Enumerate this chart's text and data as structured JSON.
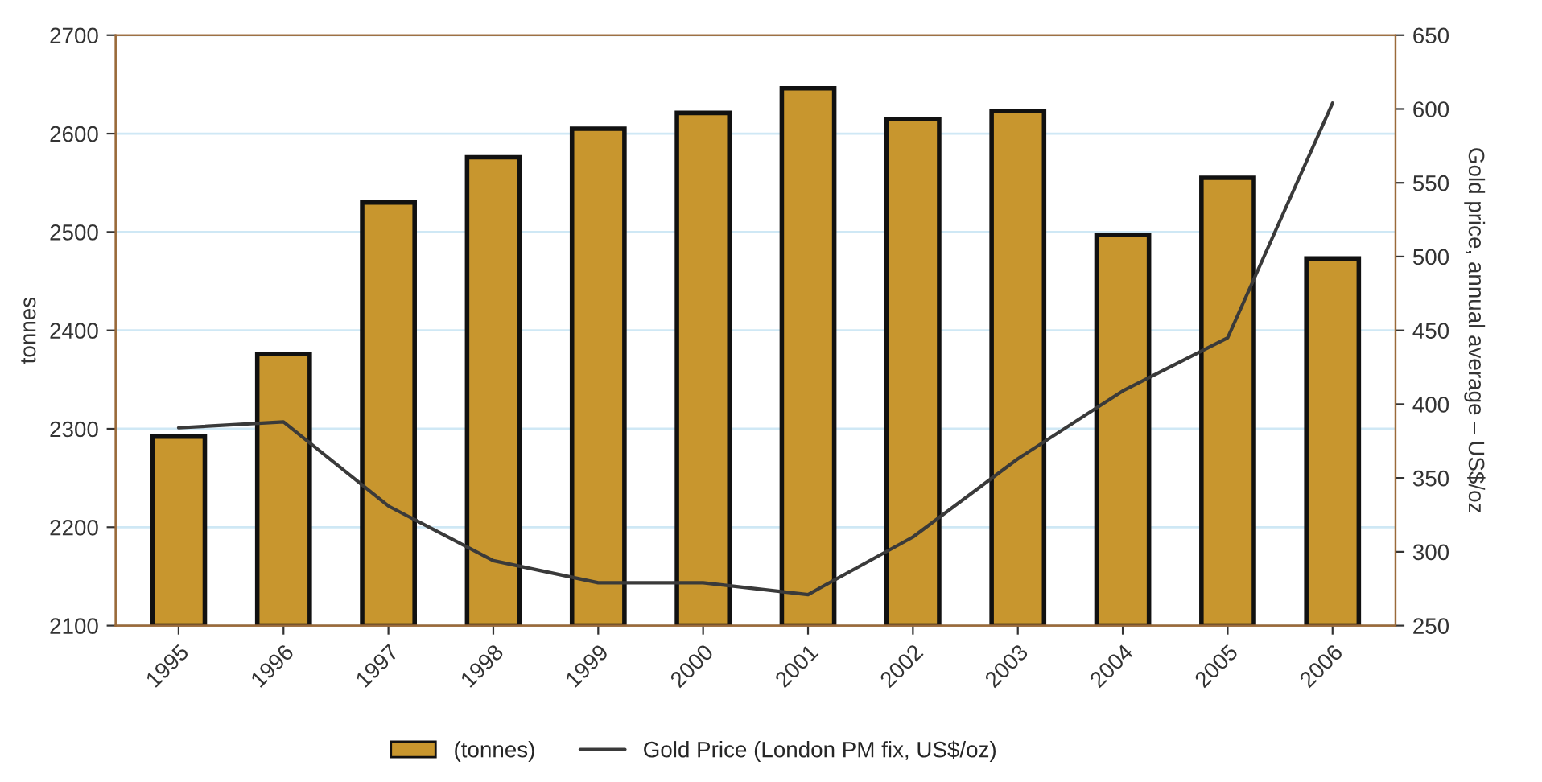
{
  "chart_data": {
    "type": "bar",
    "categories": [
      "1995",
      "1996",
      "1997",
      "1998",
      "1999",
      "2000",
      "2001",
      "2002",
      "2003",
      "2004",
      "2005",
      "2006"
    ],
    "series": [
      {
        "name": "(tonnes)",
        "color": "#c8962e",
        "values": [
          2292,
          2376,
          2530,
          2576,
          2605,
          2621,
          2646,
          2615,
          2623,
          2497,
          2555,
          2473
        ]
      },
      {
        "name": "Gold Price (London PM fix, US$/oz)",
        "type": "line",
        "axis": "y2",
        "color": "#3a3a3a",
        "values": [
          384,
          388,
          331,
          294,
          279,
          279,
          271,
          310,
          363,
          409,
          445,
          604
        ]
      }
    ],
    "ylabel": "tonnes",
    "y2label": "Gold price, annual average – US$/oz",
    "ylim": [
      2100,
      2700
    ],
    "yticks": [
      2100,
      2200,
      2300,
      2400,
      2500,
      2600,
      2700
    ],
    "y2lim": [
      250,
      650
    ],
    "y2ticks": [
      250,
      300,
      350,
      400,
      450,
      500,
      550,
      600,
      650
    ],
    "grid": "y",
    "legend": "bottom",
    "marker": "none",
    "line_style": "solid"
  }
}
